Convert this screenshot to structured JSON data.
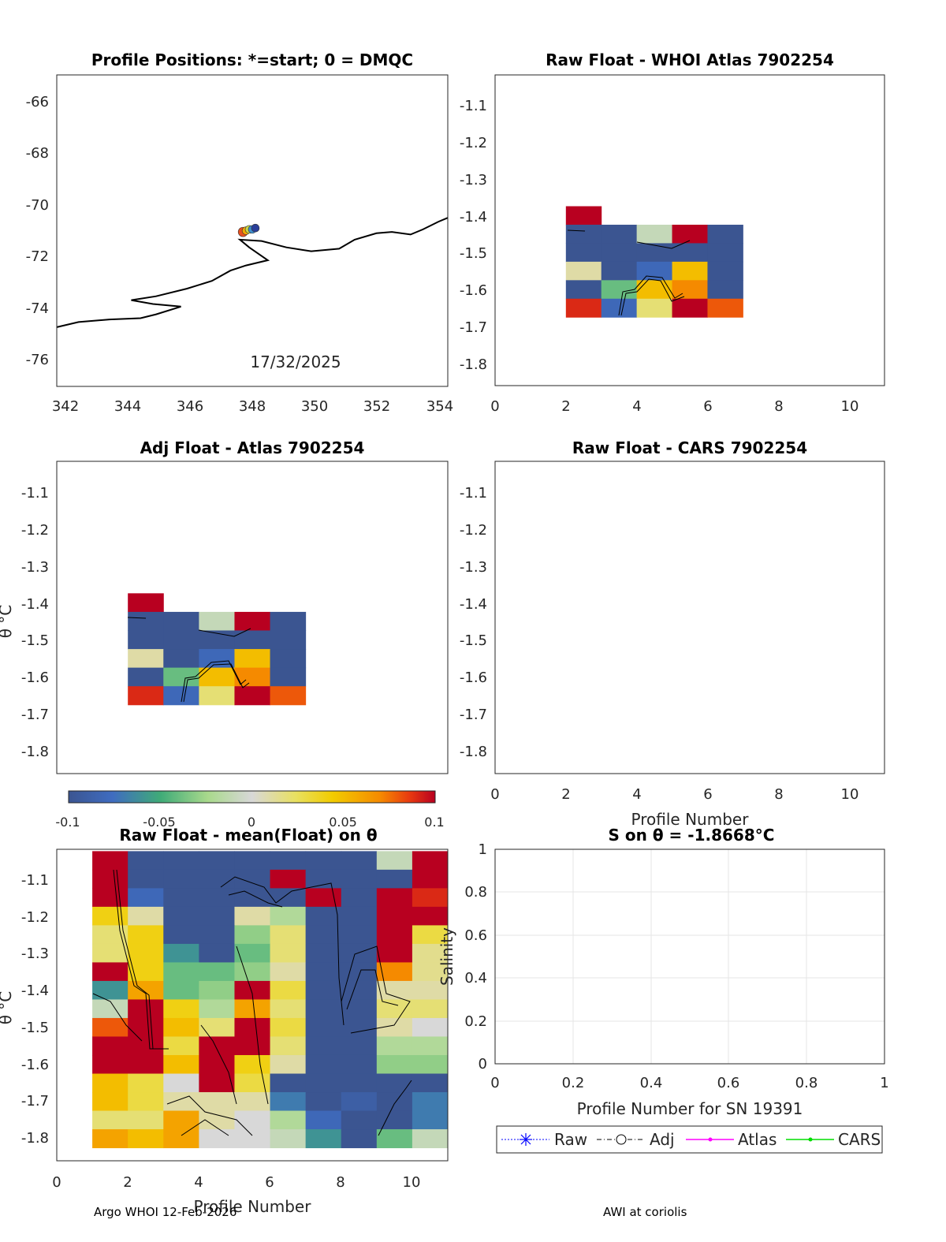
{
  "footer": {
    "left": "Argo WHOI 12-Feb-2026",
    "right": "AWI at coriolis"
  },
  "map": {
    "title": "Profile Positions: *=start; 0 = DMQC",
    "date_label": "17/32/2025",
    "xticks": [
      "342",
      "344",
      "346",
      "348",
      "350",
      "352",
      "354"
    ],
    "yticks": [
      "-66",
      "-68",
      "-70",
      "-72",
      "-74",
      "-76"
    ]
  },
  "raw_atlas": {
    "title": "Raw Float - WHOI Atlas  7902254",
    "xticks": [
      "0",
      "2",
      "4",
      "6",
      "8",
      "10"
    ],
    "yticks": [
      "-1.1",
      "-1.2",
      "-1.3",
      "-1.4",
      "-1.5",
      "-1.6",
      "-1.7",
      "-1.8"
    ]
  },
  "adj_atlas": {
    "title": "Adj Float - Atlas  7902254",
    "ylabel": "θ °C",
    "yticks": [
      "-1.1",
      "-1.2",
      "-1.3",
      "-1.4",
      "-1.5",
      "-1.6",
      "-1.7",
      "-1.8"
    ]
  },
  "raw_cars": {
    "title": "Raw Float - CARS  7902254",
    "xlabel": "Profile Number",
    "xticks": [
      "0",
      "2",
      "4",
      "6",
      "8",
      "10"
    ],
    "yticks": [
      "-1.1",
      "-1.2",
      "-1.3",
      "-1.4",
      "-1.5",
      "-1.6",
      "-1.7",
      "-1.8"
    ]
  },
  "colorbar": {
    "ticks": [
      "-0.1",
      "-0.05",
      "0",
      "0.05",
      "0.1"
    ]
  },
  "mean_panel": {
    "title": "Raw Float - mean(Float) on θ",
    "xlabel": "Profile Number",
    "ylabel": "θ °C",
    "xticks": [
      "0",
      "2",
      "4",
      "6",
      "8",
      "10"
    ],
    "yticks": [
      "-1.1",
      "-1.2",
      "-1.3",
      "-1.4",
      "-1.5",
      "-1.6",
      "-1.7",
      "-1.8"
    ]
  },
  "salinity_panel": {
    "title": "S on θ = -1.8668°C",
    "xlabel": "Profile Number for SN 19391",
    "ylabel": "Salinity",
    "xticks": [
      "0",
      "0.2",
      "0.4",
      "0.6",
      "0.8",
      "1"
    ],
    "yticks": [
      "0",
      "0.2",
      "0.4",
      "0.6",
      "0.8",
      "1"
    ]
  },
  "legend": {
    "raw": "Raw",
    "adj": "Adj",
    "atlas": "Atlas",
    "cars": "CARS"
  },
  "colors": {
    "raw": "#0000ff",
    "adj": "#000000",
    "atlas": "#ff00ff",
    "cars": "#00dd00"
  },
  "chart_data": [
    {
      "type": "scatter",
      "title": "Profile Positions: *=start; 0 = DMQC",
      "xlim": [
        341.8,
        354.4
      ],
      "ylim": [
        -77.1,
        -65.0
      ],
      "positions": [
        [
          347.8,
          -71.1
        ],
        [
          347.9,
          -71.05
        ],
        [
          348.0,
          -71.0
        ],
        [
          348.1,
          -71.0
        ],
        [
          348.2,
          -70.95
        ]
      ],
      "coastline": [
        [
          341.8,
          -74.8
        ],
        [
          342.5,
          -74.6
        ],
        [
          343.5,
          -74.5
        ],
        [
          344.5,
          -74.45
        ],
        [
          345.0,
          -74.3
        ],
        [
          345.8,
          -74.0
        ],
        [
          344.9,
          -73.9
        ],
        [
          344.2,
          -73.75
        ],
        [
          345.0,
          -73.6
        ],
        [
          346.0,
          -73.3
        ],
        [
          346.8,
          -73.0
        ],
        [
          347.4,
          -72.6
        ],
        [
          347.9,
          -72.4
        ],
        [
          348.6,
          -72.2
        ],
        [
          348.0,
          -71.7
        ],
        [
          347.7,
          -71.4
        ],
        [
          348.4,
          -71.45
        ],
        [
          349.2,
          -71.7
        ],
        [
          350.0,
          -71.85
        ],
        [
          350.9,
          -71.75
        ],
        [
          351.4,
          -71.4
        ],
        [
          352.1,
          -71.15
        ],
        [
          352.6,
          -71.1
        ],
        [
          353.2,
          -71.2
        ],
        [
          353.6,
          -71.0
        ],
        [
          354.1,
          -70.7
        ],
        [
          354.4,
          -70.55
        ]
      ]
    },
    {
      "type": "heatmap",
      "title": "Raw Float - WHOI Atlas  7902254",
      "x": [
        2,
        3,
        4,
        5,
        6
      ],
      "y": [
        -1.4,
        -1.45,
        -1.5,
        -1.55,
        -1.6,
        -1.65
      ],
      "values": [
        [
          0.1,
          null,
          null,
          null,
          null
        ],
        [
          -0.1,
          -0.1,
          -0.01,
          0.1,
          -0.1
        ],
        [
          -0.1,
          -0.1,
          -0.1,
          -0.1,
          -0.1
        ],
        [
          0.01,
          -0.1,
          -0.08,
          0.05,
          -0.1
        ],
        [
          -0.1,
          -0.04,
          0.05,
          0.07,
          -0.1
        ],
        [
          0.09,
          -0.08,
          0.02,
          0.1,
          0.08
        ]
      ],
      "xlim": [
        0,
        11
      ],
      "ylim": [
        -1.86,
        -1.02
      ],
      "clim": [
        -0.1,
        0.1
      ]
    },
    {
      "type": "heatmap",
      "title": "Adj Float - Atlas  7902254",
      "x": [
        2,
        3,
        4,
        5,
        6
      ],
      "y": [
        -1.4,
        -1.45,
        -1.5,
        -1.55,
        -1.6,
        -1.65
      ],
      "values": [
        [
          0.1,
          null,
          null,
          null,
          null
        ],
        [
          -0.1,
          -0.1,
          -0.01,
          0.1,
          -0.1
        ],
        [
          -0.1,
          -0.1,
          -0.1,
          -0.1,
          -0.1
        ],
        [
          0.01,
          -0.1,
          -0.08,
          0.05,
          -0.1
        ],
        [
          -0.1,
          -0.04,
          0.05,
          0.07,
          -0.1
        ],
        [
          0.09,
          -0.08,
          0.02,
          0.1,
          0.08
        ]
      ],
      "xlim": [
        0,
        11
      ],
      "ylim": [
        -1.86,
        -1.02
      ],
      "clim": [
        -0.1,
        0.1
      ]
    },
    {
      "type": "heatmap",
      "title": "Raw Float - CARS  7902254",
      "xlim": [
        0,
        11
      ],
      "ylim": [
        -1.86,
        -1.02
      ],
      "values": []
    },
    {
      "type": "heatmap",
      "title": "Raw Float - mean(Float) on θ",
      "x": [
        1,
        2,
        3,
        4,
        5,
        6,
        7,
        8,
        9,
        10
      ],
      "y": [
        -1.05,
        -1.1,
        -1.15,
        -1.2,
        -1.25,
        -1.3,
        -1.35,
        -1.4,
        -1.45,
        -1.5,
        -1.55,
        -1.6,
        -1.65,
        -1.7,
        -1.75,
        -1.8
      ],
      "values": [
        [
          0.1,
          -0.1,
          -0.1,
          -0.1,
          -0.1,
          -0.1,
          -0.1,
          -0.1,
          -0.01,
          0.1
        ],
        [
          0.1,
          -0.1,
          -0.1,
          -0.1,
          -0.1,
          0.1,
          -0.1,
          -0.1,
          -0.1,
          0.1
        ],
        [
          0.1,
          -0.08,
          -0.1,
          -0.1,
          -0.1,
          -0.1,
          0.1,
          -0.1,
          0.1,
          0.09
        ],
        [
          0.04,
          0.01,
          -0.1,
          -0.1,
          0.01,
          -0.02,
          -0.1,
          -0.1,
          0.1,
          0.1
        ],
        [
          0.02,
          0.04,
          -0.1,
          -0.1,
          -0.03,
          0.02,
          -0.1,
          -0.1,
          0.1,
          0.03
        ],
        [
          0.02,
          0.04,
          -0.06,
          -0.1,
          -0.04,
          0.02,
          -0.1,
          -0.1,
          0.1,
          0.015
        ],
        [
          0.1,
          0.04,
          -0.04,
          -0.04,
          -0.03,
          0.01,
          -0.1,
          -0.1,
          0.07,
          0.015
        ],
        [
          -0.06,
          0.06,
          -0.04,
          -0.03,
          0.1,
          0.03,
          -0.1,
          -0.1,
          0.01,
          0.01
        ],
        [
          -0.01,
          0.1,
          0.04,
          -0.02,
          0.06,
          0.02,
          -0.1,
          -0.1,
          0.02,
          0.02
        ],
        [
          0.08,
          0.1,
          0.05,
          0.02,
          0.1,
          0.03,
          -0.1,
          -0.1,
          0.01,
          0.0
        ],
        [
          0.1,
          0.1,
          0.03,
          0.1,
          0.1,
          0.02,
          -0.1,
          -0.1,
          -0.02,
          -0.02
        ],
        [
          0.1,
          0.1,
          0.05,
          0.1,
          0.04,
          0.01,
          -0.1,
          -0.1,
          -0.03,
          -0.03
        ],
        [
          0.05,
          0.03,
          0.0,
          0.1,
          0.03,
          -0.1,
          -0.1,
          -0.1,
          -0.1,
          -0.1
        ],
        [
          0.05,
          0.03,
          0.01,
          0.01,
          0.01,
          -0.07,
          -0.1,
          -0.09,
          -0.1,
          -0.07
        ],
        [
          0.02,
          0.02,
          0.06,
          0.01,
          0.0,
          -0.02,
          -0.08,
          -0.1,
          -0.1,
          -0.07
        ],
        [
          0.06,
          0.05,
          0.06,
          0.0,
          0.0,
          -0.01,
          -0.06,
          -0.1,
          -0.04,
          -0.01
        ]
      ],
      "xlim": [
        0,
        11
      ],
      "ylim": [
        -1.86,
        -1.02
      ],
      "clim": [
        -0.1,
        0.1
      ],
      "xlabel": "Profile Number",
      "ylabel": "θ °C"
    },
    {
      "type": "line",
      "title": "S on θ = -1.8668°C",
      "xlim": [
        0,
        1
      ],
      "ylim": [
        0,
        1
      ],
      "grid": true,
      "series": [
        {
          "name": "Raw",
          "values": []
        },
        {
          "name": "Adj",
          "values": []
        },
        {
          "name": "Atlas",
          "values": []
        },
        {
          "name": "CARS",
          "values": []
        }
      ],
      "xlabel": "Profile Number for SN 19391",
      "ylabel": "Salinity",
      "legend": "bottom"
    }
  ]
}
